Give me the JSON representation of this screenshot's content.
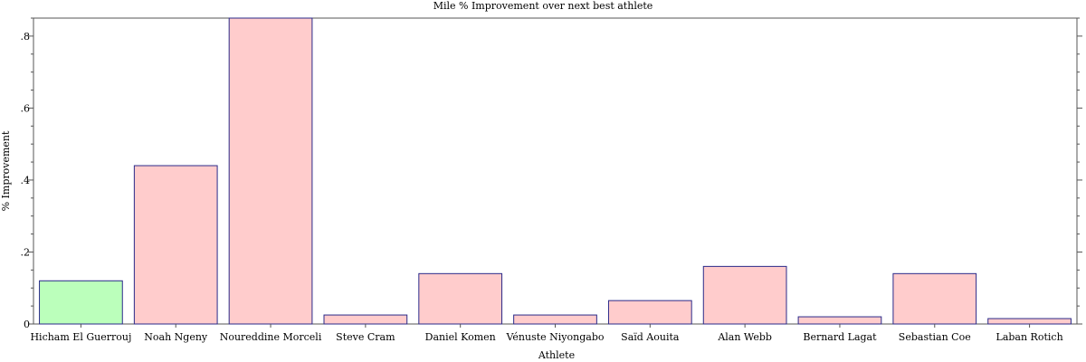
{
  "chart_data": {
    "type": "bar",
    "title": "Mile % Improvement over next best athlete",
    "xlabel": "Athlete",
    "ylabel": "% Improvement",
    "ylim": [
      0,
      0.85
    ],
    "yticks": [
      0,
      0.2,
      0.4,
      0.6,
      0.8
    ],
    "ytick_labels": [
      "0",
      ".2",
      ".4",
      ".6",
      ".8"
    ],
    "grid": false,
    "categories": [
      "Hicham El Guerrouj",
      "Noah Ngeny",
      "Noureddine Morceli",
      "Steve Cram",
      "Daniel Komen",
      "Vénuste Niyongabo",
      "Saïd Aouita",
      "Alan Webb",
      "Bernard Lagat",
      "Sebastian Coe",
      "Laban Rotich"
    ],
    "values": [
      0.12,
      0.44,
      0.85,
      0.025,
      0.14,
      0.025,
      0.065,
      0.16,
      0.02,
      0.14,
      0.015
    ],
    "colors": [
      "#bbffbb",
      "#ffcccc",
      "#ffcccc",
      "#ffcccc",
      "#ffcccc",
      "#ffcccc",
      "#ffcccc",
      "#ffcccc",
      "#ffcccc",
      "#ffcccc",
      "#ffcccc"
    ],
    "bar_edge_color": "#2a2a8a"
  }
}
